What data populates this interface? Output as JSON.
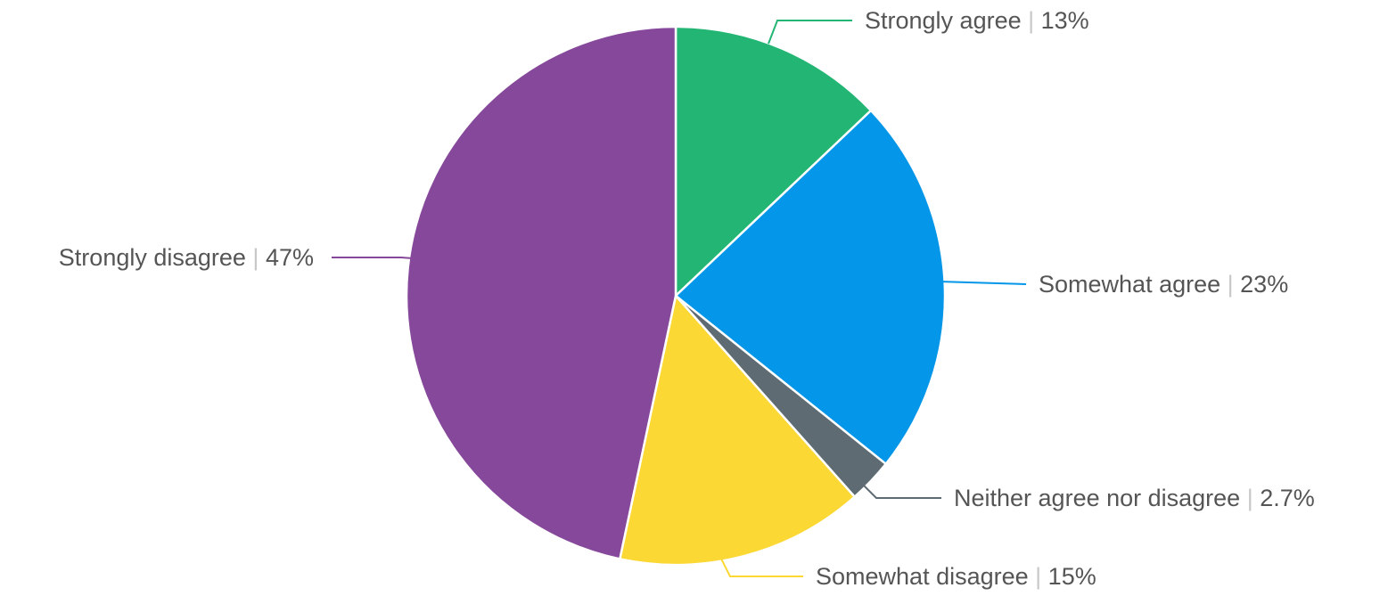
{
  "chart_data": {
    "type": "pie",
    "start": "top",
    "direction": "clockwise",
    "label_separator": "|",
    "slices": [
      {
        "label": "Strongly agree",
        "value": 13,
        "display": "13%",
        "color": "#22b573"
      },
      {
        "label": "Somewhat agree",
        "value": 23,
        "display": "23%",
        "color": "#0496e8"
      },
      {
        "label": "Neither agree nor disagree",
        "value": 2.7,
        "display": "2.7%",
        "color": "#5e6b73"
      },
      {
        "label": "Somewhat disagree",
        "value": 15,
        "display": "15%",
        "color": "#fcd834"
      },
      {
        "label": "Strongly disagree",
        "value": 47,
        "display": "47%",
        "color": "#86489a"
      }
    ]
  }
}
